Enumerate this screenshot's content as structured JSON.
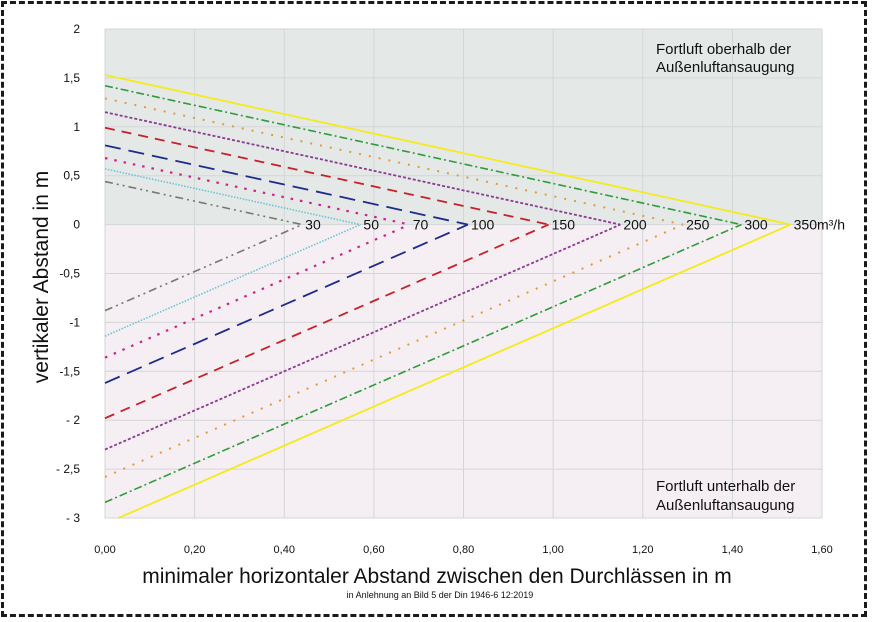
{
  "chart_data": {
    "type": "line",
    "title": "",
    "xlabel": "minimaler horizontaler Abstand zwischen den Durchlässen in m",
    "ylabel": "vertikaler Abstand in m",
    "subtitle": "in Anlehnung an Bild 5 der Din 1946-6 12:2019",
    "xlim": [
      0,
      1.6
    ],
    "ylim": [
      -3,
      2
    ],
    "grid": true,
    "x_ticks": [
      "0,00",
      "0,20",
      "0,40",
      "0,60",
      "0,80",
      "1,00",
      "1,20",
      "1,40",
      "1,60"
    ],
    "x_tick_values": [
      0,
      0.2,
      0.4,
      0.6,
      0.8,
      1.0,
      1.2,
      1.4,
      1.6
    ],
    "y_ticks": [
      "2",
      "1,5",
      "1",
      "0,5",
      "0",
      "-0,5",
      "-1",
      "-1,5",
      "- 2",
      "- 2,5",
      "- 3"
    ],
    "y_tick_values": [
      2,
      1.5,
      1,
      0.5,
      0,
      -0.5,
      -1,
      -1.5,
      -2,
      -2.5,
      -3
    ],
    "regions": [
      {
        "name": "above",
        "label_line1": "Fortluft oberhalb der",
        "label_line2": "Außenluftansaugung",
        "y_range": [
          0,
          2
        ],
        "color": "#e4e9e8"
      },
      {
        "name": "below",
        "label_line1": "Fortluft unterhalb der",
        "label_line2": "Außenluftansaugung",
        "y_range": [
          -3,
          0
        ],
        "color": "#f5eff3"
      }
    ],
    "series": [
      {
        "name": "30",
        "label": "30",
        "apex_x": 0.44,
        "upper_y0": 0.44,
        "lower_y0": -0.88,
        "color": "#7a7570",
        "dash": "8 4 2 4 2 4",
        "width": 1.6
      },
      {
        "name": "50",
        "label": "50",
        "apex_x": 0.57,
        "upper_y0": 0.57,
        "lower_y0": -1.14,
        "color": "#6fc3d3",
        "dash": "1.5 1.5",
        "width": 1.6
      },
      {
        "name": "70",
        "label": "70",
        "apex_x": 0.68,
        "upper_y0": 0.68,
        "lower_y0": -1.36,
        "color": "#d0208a",
        "dash": "2.5 7",
        "width": 2.2
      },
      {
        "name": "100",
        "label": "100",
        "apex_x": 0.81,
        "upper_y0": 0.81,
        "lower_y0": -1.62,
        "color": "#1f2a8c",
        "dash": "16 8",
        "width": 1.8
      },
      {
        "name": "150",
        "label": "150",
        "apex_x": 0.99,
        "upper_y0": 0.99,
        "lower_y0": -1.98,
        "color": "#c8202a",
        "dash": "10 7",
        "width": 1.8
      },
      {
        "name": "200",
        "label": "200",
        "apex_x": 1.15,
        "upper_y0": 1.15,
        "lower_y0": -2.3,
        "color": "#8b3a8f",
        "dash": "3 2",
        "width": 1.8
      },
      {
        "name": "250",
        "label": "250",
        "apex_x": 1.29,
        "upper_y0": 1.29,
        "lower_y0": -2.58,
        "color": "#e39a3a",
        "dash": "2 8",
        "width": 2
      },
      {
        "name": "300",
        "label": "300",
        "apex_x": 1.42,
        "upper_y0": 1.42,
        "lower_y0": -2.84,
        "color": "#2f9a3a",
        "dash": "8 3 2 3",
        "width": 1.6
      },
      {
        "name": "350",
        "label": "350m³/h",
        "apex_x": 1.53,
        "upper_y0": 1.53,
        "lower_y0": -3.06,
        "color": "#f4ea1c",
        "dash": "",
        "width": 1.8
      }
    ]
  }
}
